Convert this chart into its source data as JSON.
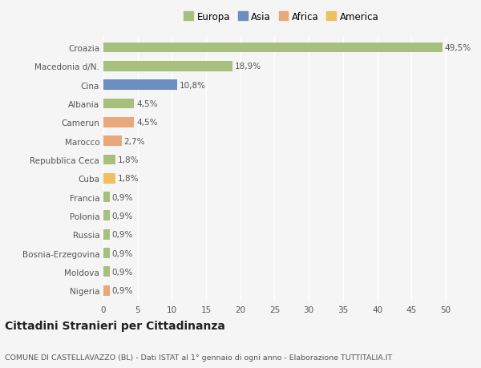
{
  "categories": [
    "Croazia",
    "Macedonia d/N.",
    "Cina",
    "Albania",
    "Camerun",
    "Marocco",
    "Repubblica Ceca",
    "Cuba",
    "Francia",
    "Polonia",
    "Russia",
    "Bosnia-Erzegovina",
    "Moldova",
    "Nigeria"
  ],
  "values": [
    49.5,
    18.9,
    10.8,
    4.5,
    4.5,
    2.7,
    1.8,
    1.8,
    0.9,
    0.9,
    0.9,
    0.9,
    0.9,
    0.9
  ],
  "labels": [
    "49,5%",
    "18,9%",
    "10,8%",
    "4,5%",
    "4,5%",
    "2,7%",
    "1,8%",
    "1,8%",
    "0,9%",
    "0,9%",
    "0,9%",
    "0,9%",
    "0,9%",
    "0,9%"
  ],
  "colors": [
    "#a8c07e",
    "#a8c07e",
    "#6a8fc0",
    "#a8c07e",
    "#e8a87c",
    "#e8a87c",
    "#a8c07e",
    "#f0c060",
    "#a8c07e",
    "#a8c07e",
    "#a8c07e",
    "#a8c07e",
    "#a8c07e",
    "#e8a87c"
  ],
  "legend_labels": [
    "Europa",
    "Asia",
    "Africa",
    "America"
  ],
  "legend_colors": [
    "#a8c07e",
    "#6a8fc0",
    "#e8a87c",
    "#f0c060"
  ],
  "title": "Cittadini Stranieri per Cittadinanza",
  "subtitle": "COMUNE DI CASTELLAVAZZO (BL) - Dati ISTAT al 1° gennaio di ogni anno - Elaborazione TUTTITALIA.IT",
  "xlim": [
    0,
    52
  ],
  "xticks": [
    0,
    5,
    10,
    15,
    20,
    25,
    30,
    35,
    40,
    45,
    50
  ],
  "bg_color": "#f5f5f5",
  "bar_height": 0.55,
  "label_fontsize": 7.5,
  "tick_fontsize": 7.5,
  "legend_fontsize": 8.5,
  "title_fontsize": 10,
  "subtitle_fontsize": 6.8
}
